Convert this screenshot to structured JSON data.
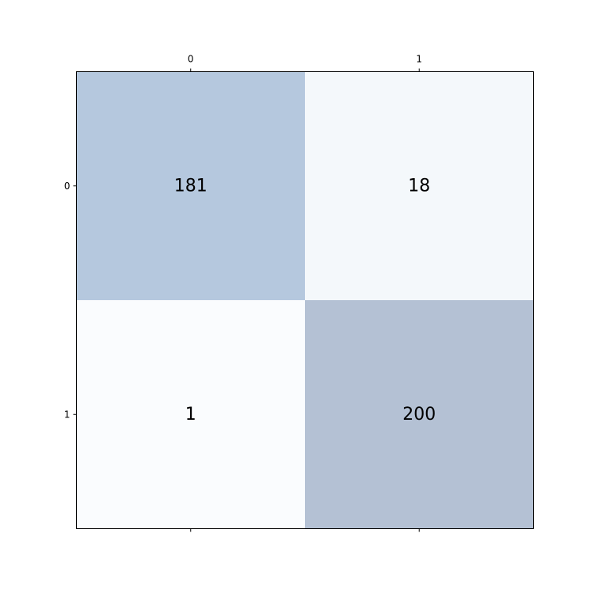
{
  "chart_data": {
    "type": "heatmap",
    "title": "",
    "xlabel": "",
    "ylabel": "",
    "x_tick_labels": [
      "0",
      "1"
    ],
    "y_tick_labels": [
      "0",
      "1"
    ],
    "x_ticks_position": "top",
    "matrix": [
      [
        181,
        18
      ],
      [
        1,
        200
      ]
    ],
    "cell_labels": [
      [
        "181",
        "18"
      ],
      [
        "1",
        "200"
      ]
    ],
    "cell_colors": [
      [
        "#b5c8de",
        "#f4f8fb"
      ],
      [
        "#fafcfe",
        "#b4c1d4"
      ]
    ],
    "colormap": "Blues"
  }
}
